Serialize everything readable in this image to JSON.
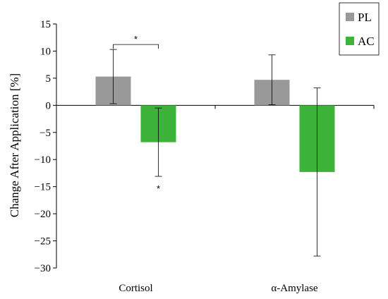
{
  "chart_data": {
    "type": "bar",
    "categories": [
      "Cortisol",
      "α-Amylase"
    ],
    "series": [
      {
        "name": "PL",
        "values": [
          5.3,
          4.7
        ],
        "errors": [
          5.0,
          4.6
        ],
        "color": "#999999"
      },
      {
        "name": "AC",
        "values": [
          -6.8,
          -12.3
        ],
        "errors": [
          6.3,
          15.5
        ],
        "color": "#3db33a"
      }
    ],
    "ylabel": "Change After Application [%]",
    "xlabel": "",
    "ylim": [
      -30,
      15
    ],
    "yticks": [
      15,
      10,
      5,
      0,
      -5,
      -10,
      -15,
      -20,
      -25,
      -30
    ],
    "ytick_labels": [
      "15",
      "10",
      "5",
      "0",
      "−5",
      "−10",
      "−15",
      "−20",
      "−25",
      "−30"
    ],
    "grid": false,
    "legend_position": "top-right",
    "annotations": [
      {
        "text": "*",
        "type": "bracket",
        "category": "Cortisol"
      },
      {
        "text": "*",
        "type": "below-error",
        "category": "Cortisol",
        "series": "AC"
      }
    ]
  }
}
